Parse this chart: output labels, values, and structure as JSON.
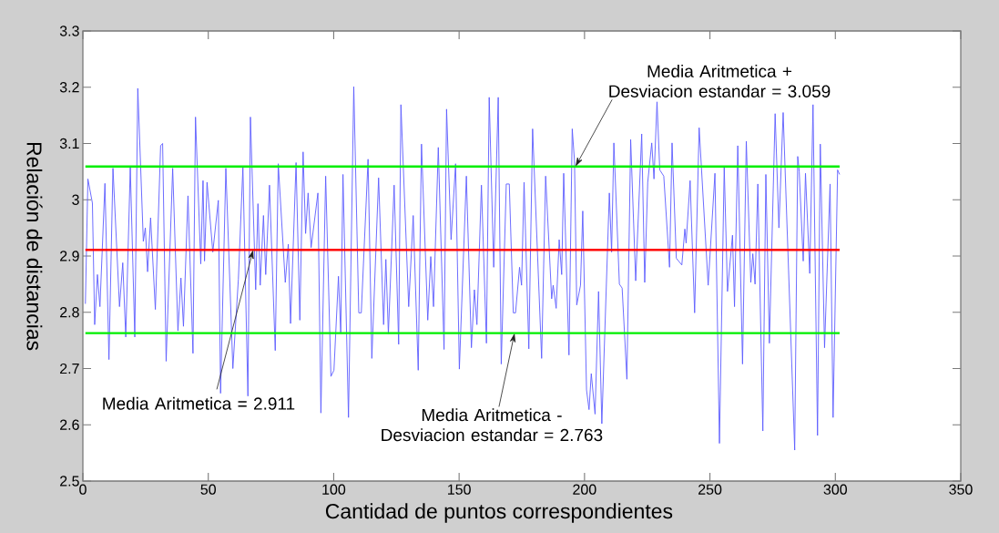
{
  "chart_data": {
    "type": "line",
    "xlabel": "Cantidad de puntos correspondientes",
    "ylabel": "Relación de distancias",
    "color": "#5c5cff",
    "x": [
      1,
      2,
      3.8,
      4.7,
      5.8,
      6.8,
      8.8,
      10.4,
      12,
      14.6,
      15.9,
      17.1,
      18.9,
      20.7,
      21.9,
      24.1,
      24.9,
      25.8,
      27,
      28.9,
      31,
      31.8,
      33.2,
      35.8,
      37.9,
      39.1,
      40.1,
      41.9,
      43.9,
      44.9,
      47,
      47.9,
      48.5,
      49.5,
      51.8,
      54,
      54.9,
      57,
      59.8,
      62,
      63.8,
      65.8,
      66.8,
      68.9,
      69.8,
      70.7,
      72,
      72.9,
      74.4,
      76.7,
      77.9,
      80.7,
      81.9,
      82.8,
      85,
      86.5,
      87.8,
      88.8,
      89.8,
      91,
      93.7,
      94.9,
      96.8,
      98.9,
      100.1,
      101.9,
      102.8,
      103.7,
      105.9,
      108,
      110,
      111,
      113.7,
      115.2,
      117.9,
      119.9,
      120.8,
      121.8,
      124.1,
      125.9,
      126.8,
      129.9,
      131.7,
      133.7,
      135,
      137.5,
      138.7,
      139.8,
      141.7,
      144,
      145,
      146.8,
      148.6,
      150.1,
      152.9,
      154.9,
      156.1,
      157.1,
      158.9,
      160.9,
      162,
      163.8,
      165.6,
      166.8,
      168.8,
      170,
      171.6,
      172.5,
      174.1,
      174.9,
      175.9,
      177.8,
      179.3,
      182.9,
      184.5,
      186.9,
      187.5,
      188.7,
      189.9,
      190.9,
      191.7,
      193.8,
      195.1,
      196,
      196.9,
      198.4,
      199.3,
      200.8,
      201.8,
      202.7,
      204.2,
      205.6,
      206.9,
      209.9,
      210.8,
      211.7,
      213.9,
      215,
      216.9,
      218.4,
      220.4,
      222.8,
      224,
      225.2,
      226.8,
      227.7,
      228.9,
      230,
      231.6,
      233.9,
      234.9,
      236.6,
      238.8,
      240,
      240.5,
      242.1,
      243.9,
      245.7,
      249.3,
      252,
      253.8,
      255.7,
      257,
      259,
      259.8,
      261.1,
      263,
      264.5,
      266.3,
      267.1,
      268,
      269.1,
      271.1,
      272.3,
      273.7,
      276,
      277.5,
      279.2,
      283.8,
      285,
      285.6,
      287.2,
      288.1,
      289.8,
      291.1,
      292.9,
      294,
      295.7,
      297.9,
      299.1,
      300.9,
      301.7
    ],
    "values": [
      2.815,
      3.037,
      2.994,
      2.778,
      2.867,
      2.81,
      3.029,
      2.716,
      3.056,
      2.81,
      2.888,
      2.756,
      3.058,
      2.756,
      3.198,
      2.926,
      2.95,
      2.872,
      2.968,
      2.805,
      3.096,
      3.1,
      2.713,
      3.056,
      2.767,
      2.861,
      2.775,
      3.007,
      2.727,
      3.147,
      2.886,
      3.034,
      2.891,
      3.031,
      2.907,
      2.999,
      2.656,
      3.056,
      2.7,
      2.859,
      3.058,
      2.651,
      3.147,
      2.84,
      2.993,
      2.848,
      2.972,
      2.867,
      3.026,
      2.732,
      3.064,
      2.853,
      2.921,
      2.78,
      3.066,
      2.786,
      3.085,
      2.94,
      3.012,
      2.915,
      3.012,
      2.621,
      3.042,
      2.686,
      2.697,
      2.864,
      2.762,
      3.045,
      2.613,
      3.201,
      2.799,
      2.799,
      3.072,
      2.718,
      3.039,
      2.778,
      2.894,
      2.762,
      3.026,
      2.743,
      3.169,
      2.81,
      2.972,
      2.697,
      3.099,
      2.786,
      2.899,
      2.81,
      3.093,
      2.734,
      3.161,
      2.929,
      3.064,
      2.699,
      3.042,
      2.737,
      2.84,
      2.778,
      3.026,
      2.745,
      3.182,
      2.88,
      3.182,
      2.708,
      3.028,
      3.028,
      2.799,
      2.799,
      2.88,
      2.848,
      3.031,
      2.735,
      3.126,
      2.718,
      3.042,
      2.824,
      2.848,
      2.807,
      2.929,
      2.867,
      3.047,
      2.724,
      3.126,
      3.069,
      2.813,
      2.848,
      2.98,
      2.662,
      2.627,
      2.691,
      2.619,
      2.837,
      2.602,
      3.012,
      2.907,
      3.101,
      2.85,
      2.843,
      2.681,
      3.107,
      2.856,
      3.117,
      2.853,
      3.031,
      3.101,
      3.037,
      3.174,
      3.053,
      3.042,
      2.88,
      3.101,
      2.896,
      2.884,
      2.948,
      2.923,
      3.034,
      2.799,
      3.128,
      2.848,
      3.047,
      2.567,
      3.058,
      2.837,
      2.937,
      2.81,
      3.096,
      2.708,
      3.104,
      2.853,
      2.904,
      2.85,
      3.028,
      2.589,
      3.045,
      2.745,
      3.153,
      2.95,
      3.155,
      2.555,
      3.077,
      3.05,
      2.891,
      3.047,
      2.869,
      3.169,
      2.581,
      3.099,
      2.737,
      3.028,
      2.613,
      3.053,
      3.045
    ],
    "xlim": [
      0,
      350
    ],
    "ylim": [
      2.5,
      3.3
    ],
    "xticks": [
      0,
      50,
      100,
      150,
      200,
      250,
      300,
      350
    ],
    "yticks": [
      2.5,
      2.6,
      2.7,
      2.8,
      2.9,
      3,
      3.1,
      3.2,
      3.3
    ],
    "ref_lines": [
      {
        "axis": "y",
        "value": 3.059,
        "label": "Media Aritmetica + Desviacion estandar = 3.059",
        "color": "#00ee00"
      },
      {
        "axis": "y",
        "value": 2.911,
        "label": "Media Aritmetica = 2.911",
        "color": "#ff0000"
      },
      {
        "axis": "y",
        "value": 2.763,
        "label": "Media Aritmetica - Desviacion estandar = 2.763",
        "color": "#00ee00"
      }
    ]
  }
}
